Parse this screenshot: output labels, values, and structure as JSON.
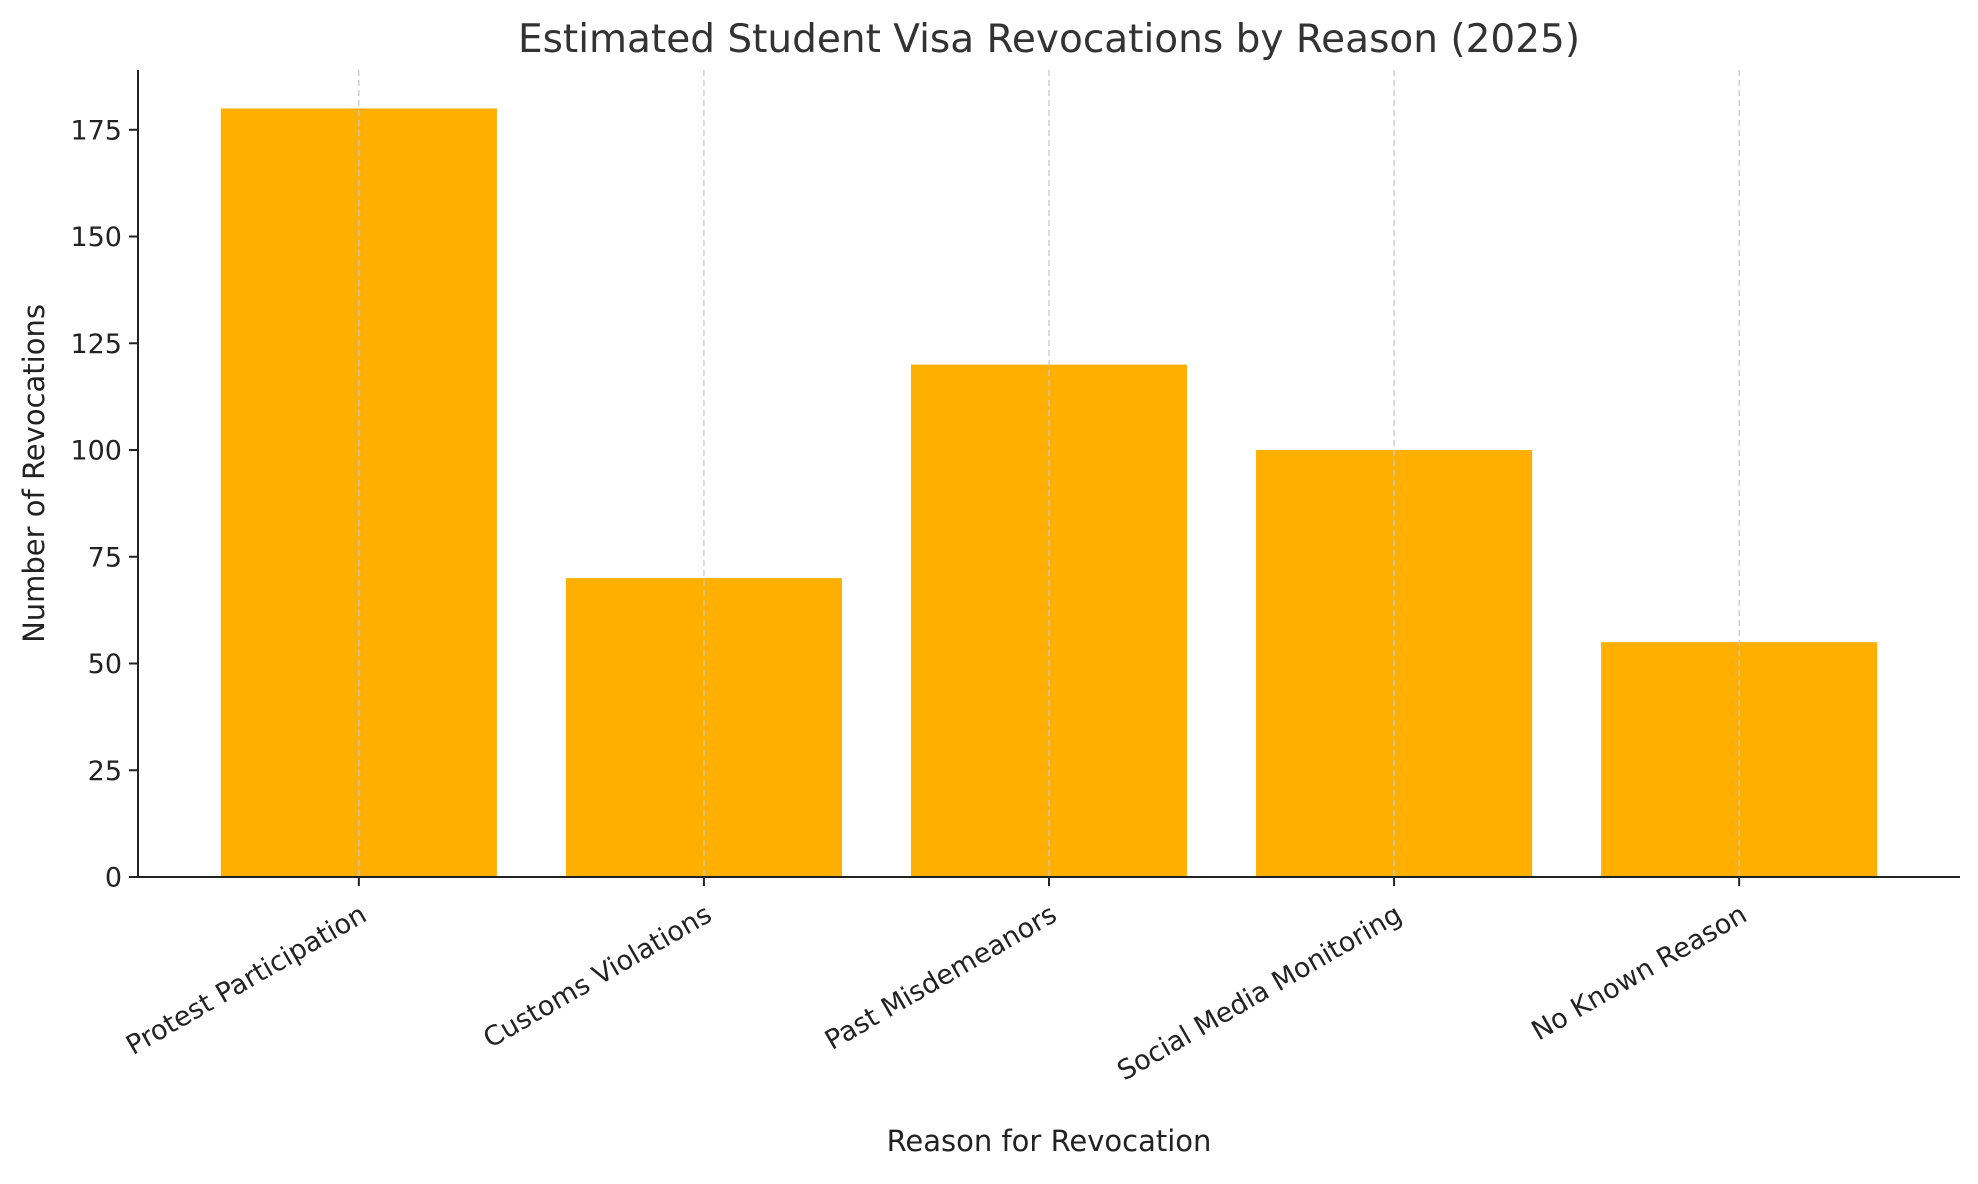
{
  "chart_data": {
    "type": "bar",
    "title": "Estimated Student Visa Revocations by Reason (2025)",
    "xlabel": "Reason for Revocation",
    "ylabel": "Number of Revocations",
    "categories": [
      "Protest Participation",
      "Customs Violations",
      "Past Misdemeanors",
      "Social Media Monitoring",
      "No Known Reason"
    ],
    "values": [
      180,
      70,
      120,
      100,
      55
    ],
    "ylim": [
      0,
      189
    ],
    "yticks": [
      0,
      25,
      50,
      75,
      100,
      125,
      150,
      175
    ],
    "grid": {
      "x": true,
      "y": false
    },
    "bar_color": "#FFAF00",
    "legend": null
  }
}
